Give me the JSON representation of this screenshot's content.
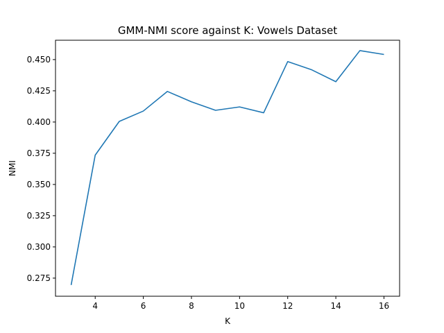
{
  "chart_data": {
    "type": "line",
    "title": "GMM-NMI score against K: Vowels Dataset",
    "xlabel": "K",
    "ylabel": "NMI",
    "xlim": [
      2.35,
      16.65
    ],
    "ylim": [
      0.2605,
      0.4655
    ],
    "xticks": [
      4,
      6,
      8,
      10,
      12,
      14,
      16
    ],
    "yticks": [
      0.275,
      0.3,
      0.325,
      0.35,
      0.375,
      0.4,
      0.425,
      0.45
    ],
    "ytick_labels": [
      "0.275",
      "0.300",
      "0.325",
      "0.350",
      "0.375",
      "0.400",
      "0.425",
      "0.450"
    ],
    "grid": false,
    "series": [
      {
        "color": "#1f77b4",
        "x": [
          3,
          4,
          5,
          6,
          7,
          8,
          9,
          10,
          11,
          12,
          13,
          14,
          15,
          16
        ],
        "y": [
          0.2695,
          0.3735,
          0.4005,
          0.4088,
          0.4245,
          0.4162,
          0.4094,
          0.4121,
          0.4074,
          0.4484,
          0.4418,
          0.4323,
          0.4572,
          0.4541
        ]
      }
    ]
  }
}
